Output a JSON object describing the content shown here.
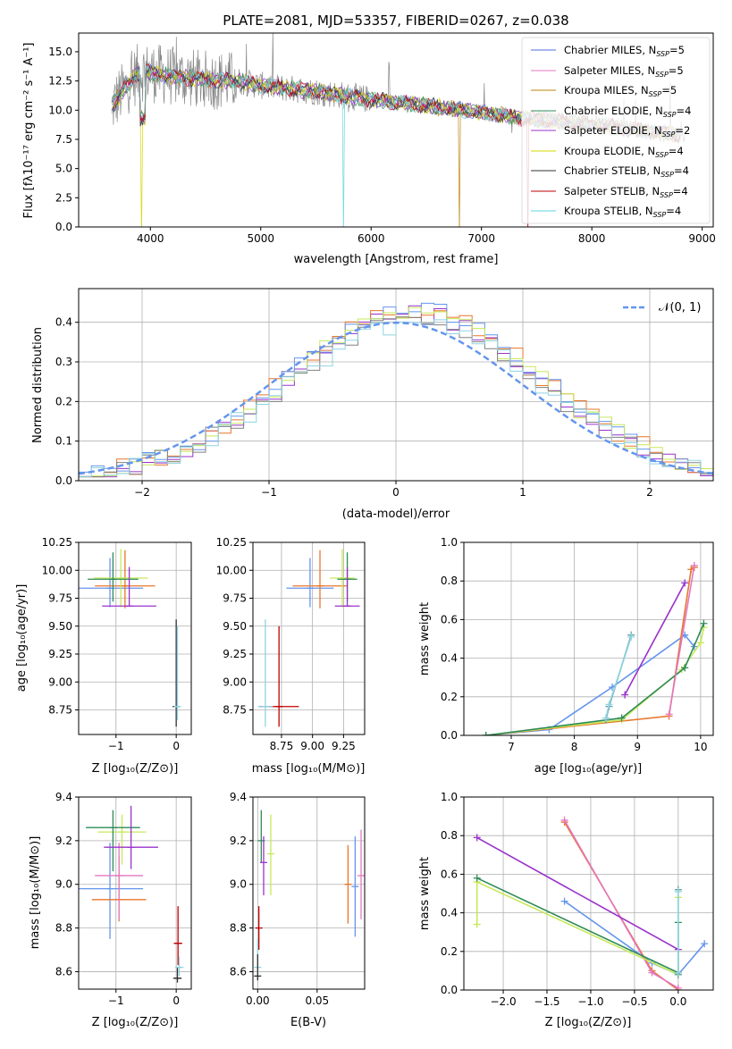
{
  "chart_data": [
    {
      "type": "line",
      "title": "PLATE=2081, MJD=53357, FIBERID=0267, z=0.038",
      "xlabel": "wavelength [Angstrom, rest frame]",
      "ylabel": "Flux [fλ10⁻¹⁷ erg cm⁻² s⁻¹ A⁻¹]",
      "xlim": [
        3350,
        9100
      ],
      "ylim": [
        0,
        16.6
      ],
      "xticks": [
        4000,
        5000,
        6000,
        7000,
        8000,
        9000
      ],
      "yticks": [
        0.0,
        2.5,
        5.0,
        7.5,
        10.0,
        12.5,
        15.0
      ],
      "xrange_data": [
        3650,
        8850
      ],
      "continuum": {
        "x": [
          3650,
          3700,
          3800,
          3900,
          4000,
          4200,
          4500,
          4800,
          5000,
          5500,
          6000,
          6500,
          7000,
          7500,
          8000,
          8500,
          8850
        ],
        "y": [
          10.2,
          11.0,
          12.2,
          13.3,
          13.2,
          12.9,
          12.6,
          12.5,
          12.1,
          11.6,
          10.9,
          10.4,
          9.8,
          9.2,
          8.8,
          8.2,
          7.8
        ]
      },
      "legend_position": "upper right",
      "series": [
        {
          "name": "Chabrier MILES, N",
          "sub": "SSP",
          "tail": "=5",
          "color": "#4c6ee0"
        },
        {
          "name": "Salpeter MILES, N",
          "sub": "SSP",
          "tail": "=5",
          "color": "#e377c2"
        },
        {
          "name": "Kroupa MILES, N",
          "sub": "SSP",
          "tail": "=5",
          "color": "#b8860b"
        },
        {
          "name": "Chabrier ELODIE, N",
          "sub": "SSP",
          "tail": "=4",
          "color": "#2e8b57"
        },
        {
          "name": "Salpeter ELODIE, N",
          "sub": "SSP",
          "tail": "=2",
          "color": "#9932cc"
        },
        {
          "name": "Kroupa ELODIE, N",
          "sub": "SSP",
          "tail": "=4",
          "color": "#d4d400"
        },
        {
          "name": "Chabrier STELIB, N",
          "sub": "SSP",
          "tail": "=4",
          "color": "#303030"
        },
        {
          "name": "Salpeter STELIB, N",
          "sub": "SSP",
          "tail": "=4",
          "color": "#c00000"
        },
        {
          "name": "Kroupa STELIB, N",
          "sub": "SSP",
          "tail": "=4",
          "color": "#5fd3e0"
        }
      ]
    },
    {
      "type": "line",
      "xlabel": "(data-model)/error",
      "ylabel": "Normed distribution",
      "xlim": [
        -2.5,
        2.5
      ],
      "ylim": [
        0,
        0.485
      ],
      "xticks": [
        -2,
        -1,
        0,
        1,
        2
      ],
      "yticks": [
        0.0,
        0.1,
        0.2,
        0.3,
        0.4
      ],
      "grid": true,
      "legend_label": "𝒩(0, 1)",
      "legend_position": "upper right",
      "bin_width": 0.1,
      "hist_colors": [
        "#9932cc",
        "#e8762b",
        "#6495ed",
        "#c7e85a",
        "#808080",
        "#8fd3e0"
      ]
    },
    {
      "type": "scatter",
      "xlabel": "Z [log₁₀(Z/Z⊙)]",
      "ylabel": "age  [log₁₀(age/yr)]",
      "xlim": [
        -1.62,
        0.25
      ],
      "ylim": [
        8.53,
        10.25
      ],
      "xticks": [
        -1,
        0
      ],
      "yticks": [
        8.75,
        9.0,
        9.25,
        9.5,
        9.75,
        10.0,
        10.25
      ],
      "points": [
        {
          "x": -1.1,
          "y": 9.84,
          "xerr": 0.55,
          "yerr": [
            0.17,
            0.27
          ],
          "color": "#6495ed"
        },
        {
          "x": -0.85,
          "y": 9.86,
          "xerr": 0.5,
          "yerr": [
            0.2,
            0.32
          ],
          "color": "#e8762b"
        },
        {
          "x": -0.92,
          "y": 9.93,
          "xerr": 0.45,
          "yerr": [
            0.26,
            0.26
          ],
          "color": "#c7e85a"
        },
        {
          "x": -1.05,
          "y": 9.92,
          "xerr": 0.42,
          "yerr": [
            0.2,
            0.24
          ],
          "color": "#2e8b57"
        },
        {
          "x": -0.78,
          "y": 9.68,
          "xerr": 0.45,
          "yerr": [
            0.0,
            0.35
          ],
          "color": "#9932cc"
        },
        {
          "x": 0.0,
          "y": 8.78,
          "xerr": 0.05,
          "yerr": [
            0.18,
            0.78
          ],
          "color": "#303030"
        },
        {
          "x": 0.02,
          "y": 8.78,
          "xerr": 0.05,
          "yerr": [
            0.12,
            0.72
          ],
          "color": "#8fd3e0"
        }
      ]
    },
    {
      "type": "scatter",
      "xlabel": "mass [log₁₀(M/M⊙)]",
      "xlim": [
        8.52,
        9.42
      ],
      "ylim": [
        8.53,
        10.25
      ],
      "xticks": [
        8.75,
        9.0,
        9.25
      ],
      "yticks": [
        8.75,
        9.0,
        9.25,
        9.5,
        9.75,
        10.0,
        10.25
      ],
      "points": [
        {
          "x": 8.98,
          "y": 9.84,
          "xerr": 0.19,
          "yerr": [
            0.17,
            0.27
          ],
          "color": "#6495ed"
        },
        {
          "x": 9.06,
          "y": 9.86,
          "xerr": 0.22,
          "yerr": [
            0.2,
            0.32
          ],
          "color": "#e8762b"
        },
        {
          "x": 9.24,
          "y": 9.93,
          "xerr": 0.1,
          "yerr": [
            0.26,
            0.26
          ],
          "color": "#c7e85a"
        },
        {
          "x": 9.28,
          "y": 9.92,
          "xerr": 0.08,
          "yerr": [
            0.2,
            0.24
          ],
          "color": "#2e8b57"
        },
        {
          "x": 9.28,
          "y": 9.68,
          "xerr": 0.1,
          "yerr": [
            0.0,
            0.35
          ],
          "color": "#9932cc"
        },
        {
          "x": 8.73,
          "y": 8.78,
          "xerr": 0.16,
          "yerr": [
            0.18,
            0.72
          ],
          "color": "#c00000"
        },
        {
          "x": 8.62,
          "y": 8.78,
          "xerr": 0.06,
          "yerr": [
            0.18,
            0.78
          ],
          "color": "#8fd3e0"
        }
      ]
    },
    {
      "type": "line",
      "xlabel": "age  [log₁₀(age/yr)]",
      "ylabel": "mass weight",
      "xlim": [
        6.25,
        10.2
      ],
      "ylim": [
        0,
        1.0
      ],
      "xticks": [
        7,
        8,
        9,
        10
      ],
      "yticks": [
        0.0,
        0.2,
        0.4,
        0.6,
        0.8,
        1.0
      ],
      "grid": true,
      "series": [
        {
          "color": "#6495ed",
          "x": [
            6.6,
            7.6,
            8.6,
            9.75,
            9.9
          ],
          "y": [
            0.0,
            0.03,
            0.25,
            0.52,
            0.46
          ]
        },
        {
          "color": "#e8762b",
          "x": [
            6.6,
            9.5,
            9.85,
            9.9
          ],
          "y": [
            0.0,
            0.1,
            0.86,
            0.87
          ]
        },
        {
          "color": "#c7e85a",
          "x": [
            6.6,
            8.75,
            9.7,
            10.0,
            10.05
          ],
          "y": [
            0.0,
            0.08,
            0.34,
            0.48,
            0.56
          ]
        },
        {
          "color": "#2e8b57",
          "x": [
            6.6,
            8.75,
            9.75,
            10.05
          ],
          "y": [
            0.0,
            0.09,
            0.35,
            0.58
          ]
        },
        {
          "color": "#9932cc",
          "x": [
            8.8,
            9.75
          ],
          "y": [
            0.21,
            0.79
          ]
        },
        {
          "color": "#5f9ea0",
          "x": [
            8.5,
            8.55,
            8.9
          ],
          "y": [
            0.08,
            0.15,
            0.52
          ]
        },
        {
          "color": "#8fd3e0",
          "x": [
            8.5,
            8.55,
            8.9
          ],
          "y": [
            0.09,
            0.16,
            0.51
          ]
        },
        {
          "color": "#e377c2",
          "x": [
            9.5,
            9.9
          ],
          "y": [
            0.11,
            0.88
          ]
        }
      ]
    },
    {
      "type": "scatter",
      "xlabel": "Z [log₁₀(Z/Z⊙)]",
      "ylabel": "mass [log₁₀(M/M⊙)]",
      "xlim": [
        -1.62,
        0.25
      ],
      "ylim": [
        8.52,
        9.4
      ],
      "xticks": [
        -1,
        0
      ],
      "yticks": [
        8.6,
        8.8,
        9.0,
        9.2,
        9.4
      ],
      "points": [
        {
          "x": -1.1,
          "y": 8.98,
          "xerr": 0.55,
          "yerr": [
            0.23,
            0.21
          ],
          "color": "#6495ed"
        },
        {
          "x": -0.95,
          "y": 8.93,
          "xerr": 0.45,
          "yerr": [
            0.1,
            0.2
          ],
          "color": "#e8762b"
        },
        {
          "x": -0.95,
          "y": 9.04,
          "xerr": 0.4,
          "yerr": [
            0.2,
            0.15
          ],
          "color": "#e377c2"
        },
        {
          "x": -0.9,
          "y": 9.24,
          "xerr": 0.4,
          "yerr": [
            0.15,
            0.08
          ],
          "color": "#c7e85a"
        },
        {
          "x": -1.05,
          "y": 9.26,
          "xerr": 0.45,
          "yerr": [
            0.2,
            0.08
          ],
          "color": "#2e8b57"
        },
        {
          "x": -0.75,
          "y": 9.17,
          "xerr": 0.45,
          "yerr": [
            0.1,
            0.19
          ],
          "color": "#9932cc"
        },
        {
          "x": 0.03,
          "y": 8.73,
          "xerr": 0.07,
          "yerr": [
            0.1,
            0.17
          ],
          "color": "#c00000"
        },
        {
          "x": 0.02,
          "y": 8.57,
          "xerr": 0.07,
          "yerr": [
            0.02,
            0.05
          ],
          "color": "#303030"
        },
        {
          "x": 0.05,
          "y": 8.62,
          "xerr": 0.07,
          "yerr": [
            0.04,
            0.05
          ],
          "color": "#8fd3e0"
        }
      ]
    },
    {
      "type": "scatter",
      "xlabel": "E(B-V)",
      "xlim": [
        -0.004,
        0.09
      ],
      "ylim": [
        8.52,
        9.4
      ],
      "xticks": [
        0.0,
        0.05
      ],
      "yticks": [
        8.6,
        8.8,
        9.0,
        9.2,
        9.4
      ],
      "points": [
        {
          "x": 0.0,
          "y": 8.62,
          "yerr": [
            0.06,
            0.13
          ],
          "color": "#8fd3e0"
        },
        {
          "x": 0.0,
          "y": 8.58,
          "yerr": [
            0.02,
            0.1
          ],
          "color": "#303030"
        },
        {
          "x": 0.001,
          "y": 8.8,
          "yerr": [
            0.1,
            0.1
          ],
          "color": "#c00000"
        },
        {
          "x": 0.003,
          "y": 9.2,
          "yerr": [
            0.1,
            0.14
          ],
          "color": "#2e8b57"
        },
        {
          "x": 0.005,
          "y": 9.1,
          "yerr": [
            0.15,
            0.12
          ],
          "color": "#9932cc"
        },
        {
          "x": 0.011,
          "y": 9.14,
          "yerr": [
            0.19,
            0.18
          ],
          "color": "#c7e85a"
        },
        {
          "x": 0.076,
          "y": 9.0,
          "yerr": [
            0.18,
            0.18
          ],
          "color": "#e8762b"
        },
        {
          "x": 0.082,
          "y": 8.99,
          "yerr": [
            0.23,
            0.23
          ],
          "color": "#6495ed"
        },
        {
          "x": 0.087,
          "y": 9.04,
          "yerr": [
            0.2,
            0.21
          ],
          "color": "#e377c2"
        }
      ]
    },
    {
      "type": "line",
      "xlabel": "Z [log₁₀(Z/Z⊙)]",
      "ylabel": "mass weight",
      "xlim": [
        -2.45,
        0.4
      ],
      "ylim": [
        0,
        1.0
      ],
      "xticks": [
        -2.0,
        -1.5,
        -1.0,
        -0.5,
        0.0
      ],
      "yticks": [
        0.0,
        0.2,
        0.4,
        0.6,
        0.8,
        1.0
      ],
      "grid": true,
      "series": [
        {
          "color": "#6495ed",
          "x": [
            -1.3,
            -0.3,
            0.0,
            0.3
          ],
          "y": [
            0.46,
            0.14,
            0.08,
            0.24
          ]
        },
        {
          "color": "#e8762b",
          "x": [
            -1.3,
            -0.3,
            0.0
          ],
          "y": [
            0.87,
            0.1,
            0.0
          ]
        },
        {
          "color": "#e377c2",
          "x": [
            -1.3,
            -0.3,
            0.0
          ],
          "y": [
            0.88,
            0.09,
            0.01
          ]
        },
        {
          "color": "#c7e85a",
          "x": [
            -2.3,
            -2.3,
            0.0,
            0.0
          ],
          "y": [
            0.34,
            0.56,
            0.08,
            0.48
          ]
        },
        {
          "color": "#2e8b57",
          "x": [
            -2.3,
            0.0,
            0.0
          ],
          "y": [
            0.58,
            0.09,
            0.35
          ]
        },
        {
          "color": "#9932cc",
          "x": [
            -2.3,
            0.0
          ],
          "y": [
            0.79,
            0.21
          ]
        },
        {
          "color": "#5f9ea0",
          "x": [
            0.0,
            0.0
          ],
          "y": [
            0.08,
            0.52
          ]
        },
        {
          "color": "#8fd3e0",
          "x": [
            0.0,
            0.0
          ],
          "y": [
            0.09,
            0.51
          ]
        }
      ]
    }
  ]
}
